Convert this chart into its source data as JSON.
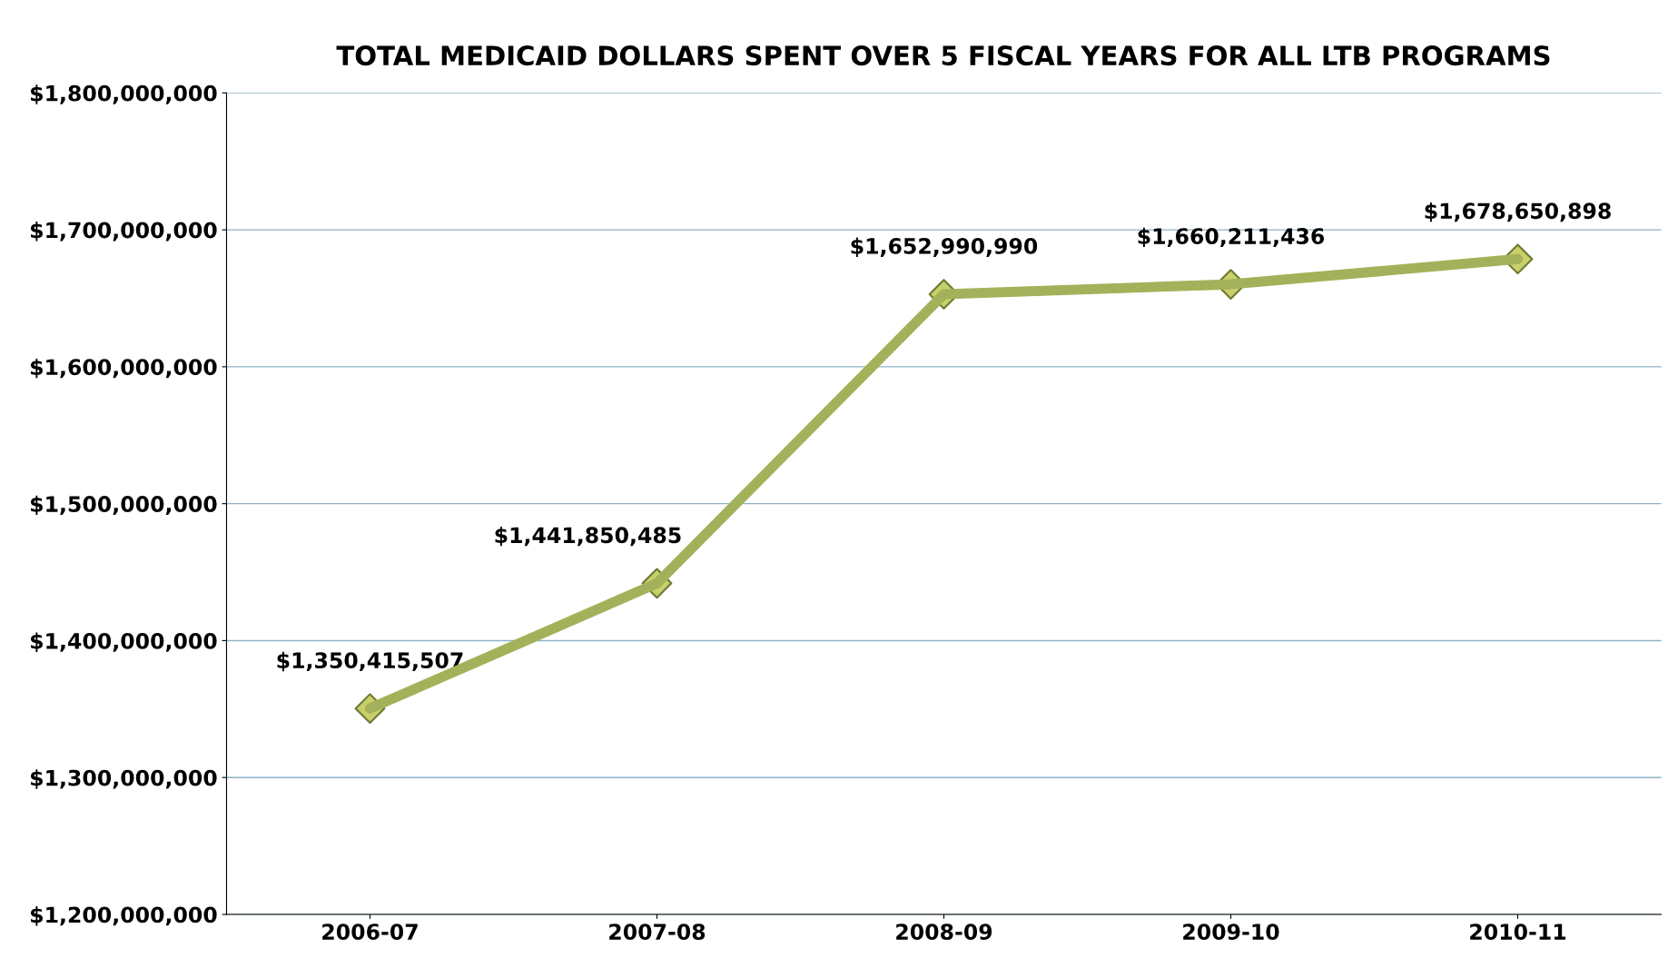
{
  "chart_data": {
    "type": "line",
    "title": "TOTAL MEDICAID DOLLARS SPENT OVER 5 FISCAL YEARS FOR ALL LTB PROGRAMS",
    "categories": [
      "2006-07",
      "2007-08",
      "2008-09",
      "2009-10",
      "2010-11"
    ],
    "values": [
      1350415507,
      1441850485,
      1652990990,
      1660211436,
      1678650898
    ],
    "value_labels": [
      "$1,350,415,507",
      "$1,441,850,485",
      "$1,652,990,990",
      "$1,660,211,436",
      "$1,678,650,898"
    ],
    "color": "#a3b25a",
    "marker": "diamond",
    "line_style": "solid",
    "grid": "y",
    "ylim": [
      1200000000,
      1800000000
    ],
    "yticks": [
      {
        "value": 1200000000,
        "label": "$1,200,000,000"
      },
      {
        "value": 1300000000,
        "label": "$1,300,000,000"
      },
      {
        "value": 1400000000,
        "label": "$1,400,000,000"
      },
      {
        "value": 1500000000,
        "label": "$1,500,000,000"
      },
      {
        "value": 1600000000,
        "label": "$1,600,000,000"
      },
      {
        "value": 1700000000,
        "label": "$1,700,000,000"
      },
      {
        "value": 1800000000,
        "label": "$1,800,000,000"
      }
    ]
  }
}
